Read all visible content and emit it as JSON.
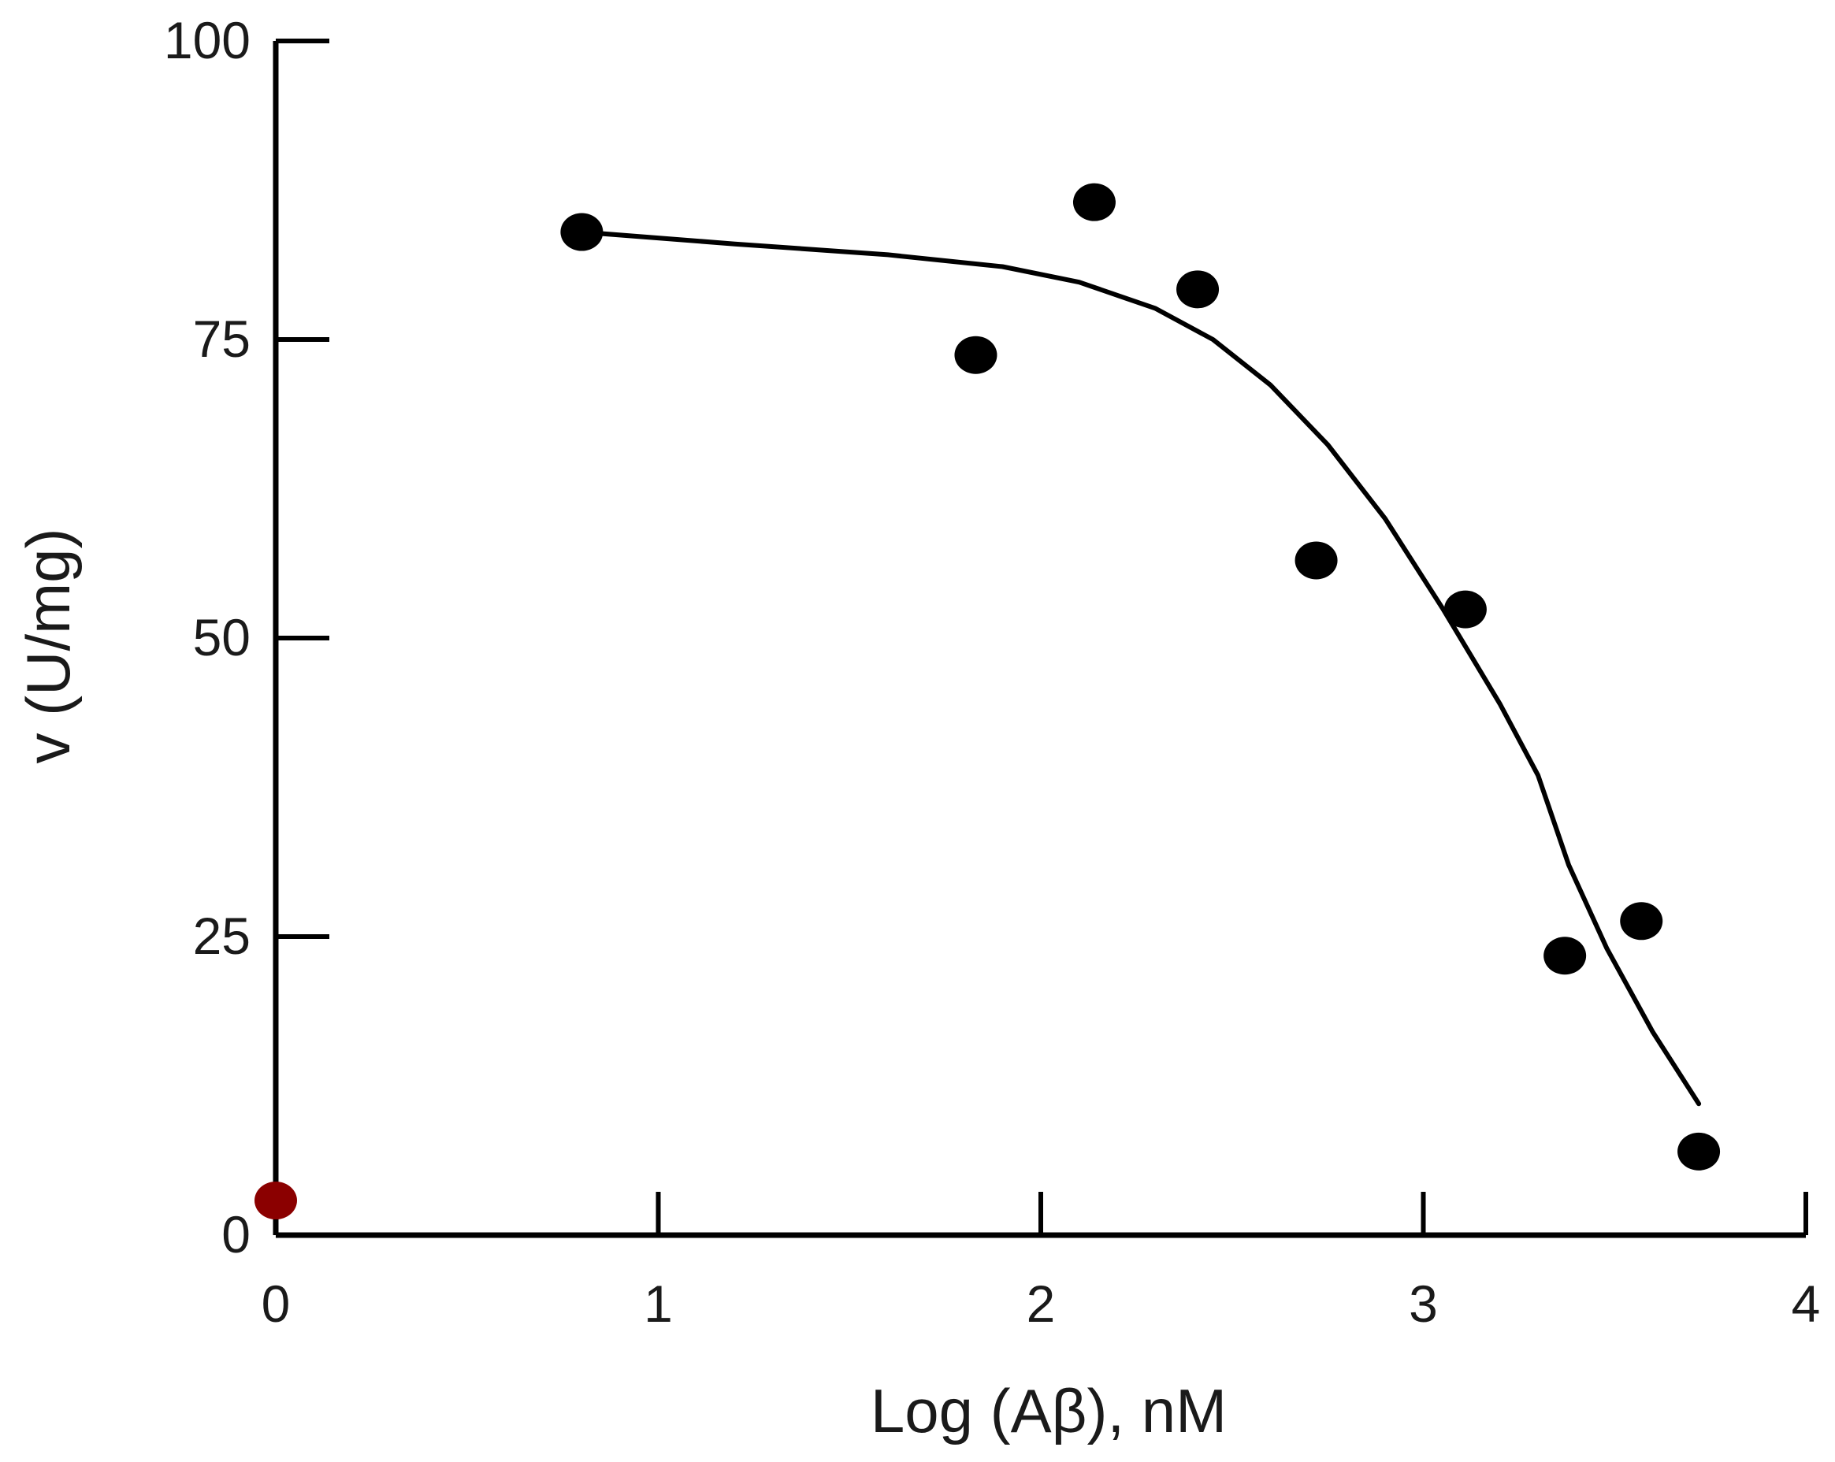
{
  "chart_data": {
    "type": "scatter",
    "xlabel": "Log (Aβ), nM",
    "ylabel": "v (U/mg)",
    "xlim": [
      0,
      4
    ],
    "ylim": [
      0,
      100
    ],
    "x_ticks": [
      0,
      1,
      2,
      3,
      4
    ],
    "y_ticks": [
      0,
      25,
      50,
      75,
      100
    ],
    "x_tick_labels": [
      "0",
      "1",
      "2",
      "3",
      "4"
    ],
    "y_tick_labels": [
      "0",
      "25",
      "50",
      "75",
      "100"
    ],
    "grid": false,
    "legend": "none",
    "series": [
      {
        "kind": "points",
        "color": "#000000",
        "points": [
          {
            "x": 0.8,
            "y": 84.0
          },
          {
            "x": 1.83,
            "y": 73.7
          },
          {
            "x": 2.14,
            "y": 86.5
          },
          {
            "x": 2.41,
            "y": 79.2
          },
          {
            "x": 2.72,
            "y": 56.5
          },
          {
            "x": 3.11,
            "y": 52.4
          },
          {
            "x": 3.37,
            "y": 23.4
          },
          {
            "x": 3.57,
            "y": 26.3
          },
          {
            "x": 3.72,
            "y": 7.0
          }
        ]
      },
      {
        "kind": "points",
        "color": "#8b0000",
        "points": [
          {
            "x": 0.0,
            "y": 2.9
          }
        ]
      },
      {
        "kind": "fit-line",
        "color": "#000000",
        "points": [
          {
            "x": 0.8,
            "y": 84.0
          },
          {
            "x": 1.2,
            "y": 83.0
          },
          {
            "x": 1.6,
            "y": 82.1
          },
          {
            "x": 1.9,
            "y": 81.1
          },
          {
            "x": 2.1,
            "y": 79.8
          },
          {
            "x": 2.3,
            "y": 77.6
          },
          {
            "x": 2.45,
            "y": 75.0
          },
          {
            "x": 2.6,
            "y": 71.2
          },
          {
            "x": 2.75,
            "y": 66.2
          },
          {
            "x": 2.9,
            "y": 60.0
          },
          {
            "x": 3.05,
            "y": 52.5
          },
          {
            "x": 3.2,
            "y": 44.5
          },
          {
            "x": 3.3,
            "y": 38.5
          },
          {
            "x": 3.38,
            "y": 31.0
          },
          {
            "x": 3.48,
            "y": 24.0
          },
          {
            "x": 3.6,
            "y": 17.0
          },
          {
            "x": 3.72,
            "y": 11.0
          }
        ]
      }
    ]
  }
}
